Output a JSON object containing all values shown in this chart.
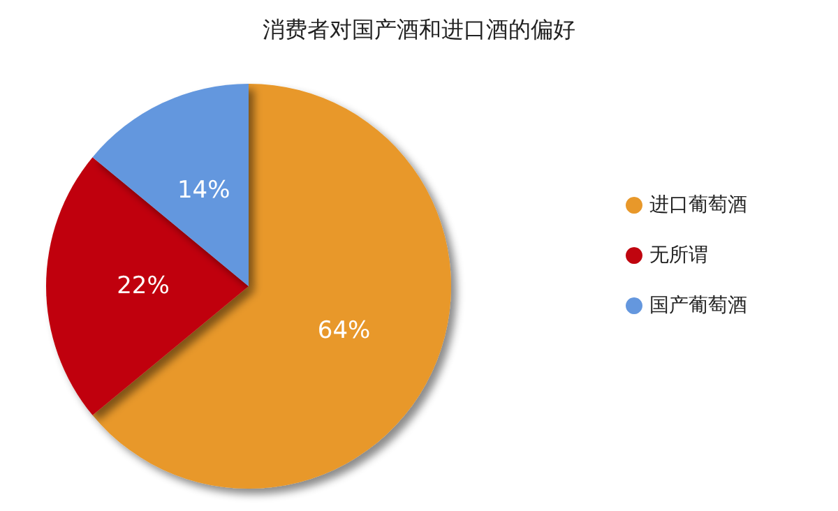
{
  "chart_data": {
    "type": "pie",
    "title": "消费者对国产酒和进口酒的偏好",
    "categories": [
      "进口葡萄酒",
      "无所谓",
      "国产葡萄酒"
    ],
    "values": [
      64,
      22,
      14
    ],
    "colors": [
      "#e8982a",
      "#c0050f",
      "#6497de"
    ],
    "value_labels": [
      "64%",
      "22%",
      "14%"
    ],
    "legend": "right"
  }
}
